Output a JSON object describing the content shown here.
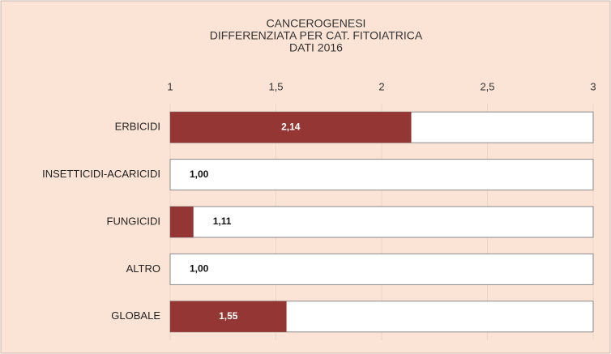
{
  "chart_data": {
    "type": "bar",
    "orientation": "horizontal",
    "title": [
      "CANCEROGENESI",
      "DIFFERENZIATA PER CAT. FITOIATRICA",
      "DATI  2016"
    ],
    "categories": [
      "ERBICIDI",
      "INSETTICIDI-ACARICIDI",
      "FUNGICIDI",
      "ALTRO",
      "GLOBALE"
    ],
    "values": [
      2.14,
      1.0,
      1.11,
      1.0,
      1.55
    ],
    "value_labels": [
      "2,14",
      "1,00",
      "1,11",
      "1,00",
      "1,55"
    ],
    "color": "#943634",
    "xlim": [
      1,
      3
    ],
    "xticks": [
      1,
      {
        "value": 1.5,
        "label": "1,5"
      },
      2,
      {
        "value": 2.5,
        "label": "2,5"
      },
      3
    ],
    "grid": true
  }
}
